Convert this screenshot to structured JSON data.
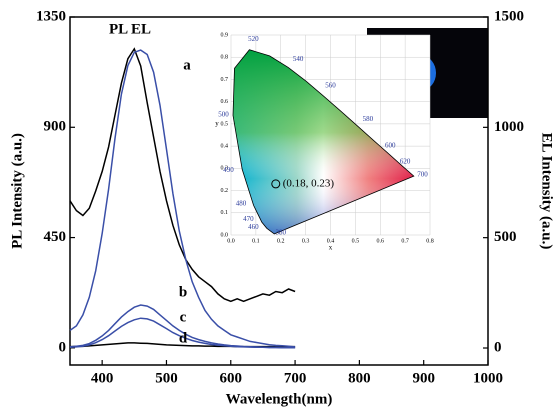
{
  "chart_data": [
    {
      "type": "line",
      "x_label": "Wavelength(nm)",
      "y_label": "PL Intensity (a.u.)",
      "y2_label": "EL Intensity (a.u.)",
      "annotations": [
        "PL EL",
        "a",
        "b",
        "c",
        "d"
      ],
      "xlim": [
        350,
        1000
      ],
      "xticks": [
        400,
        500,
        600,
        700,
        800,
        900,
        1000
      ],
      "ylim": [
        -70,
        1350
      ],
      "yticks": [
        0,
        450,
        900,
        1350
      ],
      "y2lim": [
        -77,
        1500
      ],
      "y2ticks": [
        0,
        500,
        1000,
        1500
      ],
      "x": [
        350,
        360,
        370,
        380,
        390,
        400,
        410,
        420,
        430,
        440,
        450,
        460,
        470,
        480,
        490,
        500,
        510,
        520,
        530,
        540,
        550,
        560,
        570,
        580,
        590,
        600,
        610,
        620,
        630,
        640,
        650,
        660,
        670,
        680,
        690,
        700
      ],
      "series": [
        {
          "color": "#000000",
          "values": [
            600,
            560,
            540,
            570,
            640,
            720,
            820,
            950,
            1080,
            1180,
            1220,
            1150,
            1000,
            860,
            720,
            600,
            500,
            420,
            360,
            320,
            290,
            270,
            250,
            220,
            200,
            190,
            200,
            190,
            200,
            210,
            220,
            215,
            230,
            225,
            240,
            230
          ]
        },
        {
          "color": "#000000",
          "values": [
            5,
            6,
            6,
            8,
            10,
            12,
            14,
            16,
            18,
            20,
            20,
            19,
            18,
            16,
            14,
            12,
            11,
            10,
            9,
            8,
            8,
            7,
            7,
            6,
            6,
            6,
            5,
            5,
            5,
            5,
            5,
            5,
            5,
            5,
            5,
            5
          ]
        },
        {
          "color": "#3a4fa8",
          "axis": "y2",
          "values": [
            80,
            100,
            150,
            230,
            350,
            520,
            720,
            950,
            1150,
            1280,
            1340,
            1350,
            1330,
            1250,
            1100,
            900,
            700,
            530,
            400,
            300,
            230,
            170,
            130,
            100,
            80,
            60,
            50,
            40,
            30,
            25,
            20,
            15,
            12,
            10,
            8,
            5
          ]
        },
        {
          "color": "#3a4fa8",
          "axis": "y2",
          "values": [
            5,
            8,
            12,
            20,
            35,
            55,
            80,
            110,
            140,
            165,
            185,
            195,
            190,
            175,
            150,
            125,
            100,
            80,
            62,
            48,
            38,
            30,
            23,
            18,
            14,
            11,
            9,
            7,
            6,
            5,
            4,
            3,
            3,
            2,
            2,
            1
          ]
        },
        {
          "color": "#3a4fa8",
          "axis": "y2",
          "values": [
            3,
            5,
            8,
            14,
            24,
            38,
            56,
            77,
            98,
            115,
            128,
            135,
            132,
            122,
            105,
            88,
            70,
            56,
            44,
            34,
            27,
            21,
            16,
            13,
            10,
            8,
            6,
            5,
            4,
            3,
            3,
            2,
            2,
            1,
            1,
            1
          ]
        }
      ]
    },
    {
      "type": "scatter",
      "x_label": "x",
      "y_label": "y",
      "xlim": [
        0,
        0.8
      ],
      "xticks": [
        {
          "value": 0,
          "label": "0.0"
        },
        0.1,
        0.2,
        0.3,
        0.4,
        0.5,
        0.6,
        0.7,
        0.8
      ],
      "ylim": [
        0,
        0.9
      ],
      "yticks": [
        {
          "value": 0,
          "label": "0.0"
        },
        0.1,
        0.2,
        0.3,
        0.4,
        0.5,
        0.6,
        0.7,
        0.8,
        0.9
      ],
      "x_values": [
        0.18
      ],
      "values": [
        0.23
      ],
      "value_labels": [
        "(0.18, 0.23)"
      ],
      "locus_labels": [
        "520",
        "540",
        "560",
        "580",
        "600",
        "620",
        "700",
        "380",
        "460",
        "470",
        "480",
        "490",
        "500"
      ]
    }
  ]
}
